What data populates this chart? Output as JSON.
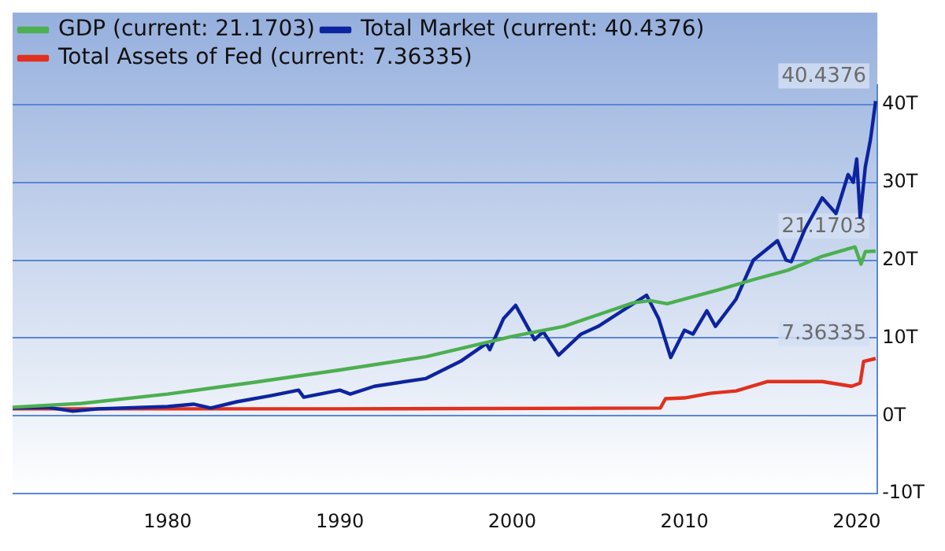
{
  "chart_data": {
    "type": "line",
    "xlim": [
      1971,
      2021.2
    ],
    "xticks": [
      1980,
      1990,
      2000,
      2010,
      2020
    ],
    "ylim": [
      -10,
      42.5
    ],
    "yticks": [
      {
        "value": -10,
        "label": "-10T"
      },
      {
        "value": 0,
        "label": "0T"
      },
      {
        "value": 10,
        "label": "10T"
      },
      {
        "value": 20,
        "label": "20T"
      },
      {
        "value": 30,
        "label": "30T"
      },
      {
        "value": 40,
        "label": "40T"
      }
    ],
    "grid": "y",
    "legend": "top left",
    "marker": "none",
    "line_style": "solid",
    "series": [
      {
        "name": "GDP (current: 21.1703)",
        "color": "#4caf50",
        "x": [
          1971,
          1975,
          1980,
          1985,
          1990,
          1995,
          2000,
          2003,
          2005,
          2007,
          2008,
          2009,
          2010,
          2012,
          2014,
          2016,
          2018,
          2019.9,
          2020.25,
          2020.5,
          2021.1
        ],
        "values": [
          1.1,
          1.6,
          2.8,
          4.3,
          5.9,
          7.6,
          10.2,
          11.5,
          13,
          14.5,
          14.8,
          14.4,
          15,
          16.2,
          17.5,
          18.7,
          20.5,
          21.7,
          19.5,
          21.1,
          21.1703
        ],
        "value_labels": [
          null,
          null,
          null,
          null,
          null,
          null,
          null,
          null,
          null,
          null,
          null,
          null,
          null,
          null,
          null,
          null,
          null,
          null,
          null,
          null,
          "21.1703"
        ]
      },
      {
        "name": "Total Market (current: 40.4376)",
        "color": "#0d24a0",
        "x": [
          1971,
          1973,
          1974.5,
          1976,
          1980,
          1981.5,
          1982.5,
          1984,
          1986,
          1987.6,
          1987.9,
          1990,
          1990.6,
          1992,
          1995,
          1997,
          1998.5,
          1998.7,
          1999.5,
          2000.2,
          2001.3,
          2001.8,
          2002.7,
          2004,
          2005,
          2007.8,
          2008.5,
          2009.2,
          2010,
          2010.5,
          2011.3,
          2011.8,
          2013,
          2014,
          2015.4,
          2015.9,
          2016.2,
          2017,
          2018,
          2018.8,
          2019.5,
          2019.8,
          2020,
          2020.2,
          2020.5,
          2020.8,
          2021.1
        ],
        "values": [
          1,
          1.1,
          0.6,
          0.9,
          1.2,
          1.5,
          1,
          1.8,
          2.6,
          3.3,
          2.4,
          3.3,
          2.8,
          3.8,
          4.8,
          7,
          9.3,
          8.5,
          12.5,
          14.2,
          9.8,
          10.8,
          7.8,
          10.5,
          11.5,
          15.5,
          12.5,
          7.5,
          11,
          10.5,
          13.5,
          11.5,
          15,
          20,
          22.5,
          20,
          19.8,
          24,
          28,
          26,
          31,
          30,
          33,
          25.5,
          32,
          35.5,
          40.4376
        ],
        "value_labels": [
          null,
          null,
          null,
          null,
          null,
          null,
          null,
          null,
          null,
          null,
          null,
          null,
          null,
          null,
          null,
          null,
          null,
          null,
          null,
          null,
          null,
          null,
          null,
          null,
          null,
          null,
          null,
          null,
          null,
          null,
          null,
          null,
          null,
          null,
          null,
          null,
          null,
          null,
          null,
          null,
          null,
          null,
          null,
          null,
          null,
          null,
          "40.4376"
        ]
      },
      {
        "name": "Total Assets of Fed (current: 7.36335)",
        "color": "#e0301e",
        "x": [
          1971,
          1990,
          2008.6,
          2008.9,
          2010,
          2011.5,
          2013,
          2014.8,
          2018,
          2019.7,
          2020.2,
          2020.4,
          2021.1
        ],
        "values": [
          0.9,
          0.9,
          1,
          2.2,
          2.3,
          2.9,
          3.2,
          4.4,
          4.4,
          3.8,
          4.2,
          7,
          7.36335
        ],
        "value_labels": [
          null,
          null,
          null,
          null,
          null,
          null,
          null,
          null,
          null,
          null,
          null,
          null,
          "7.36335"
        ]
      }
    ]
  }
}
